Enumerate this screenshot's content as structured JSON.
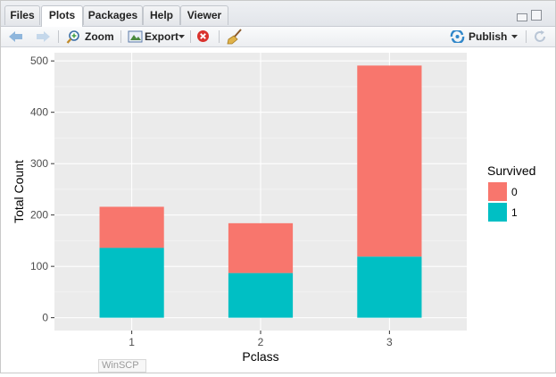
{
  "tabs": [
    {
      "label": "Files"
    },
    {
      "label": "Plots"
    },
    {
      "label": "Packages"
    },
    {
      "label": "Help"
    },
    {
      "label": "Viewer"
    }
  ],
  "toolbar": {
    "zoom_label": "Zoom",
    "export_label": "Export",
    "publish_label": "Publish"
  },
  "taskbar": {
    "winscp_label": "WinSCP"
  },
  "colors": {
    "survived_0": "#F8766D",
    "survived_1": "#00BFC4",
    "panel_bg": "#EBEBEB"
  },
  "chart_data": {
    "type": "bar",
    "stacked": true,
    "categories": [
      "1",
      "2",
      "3"
    ],
    "series": [
      {
        "name": "1",
        "values": [
          136,
          87,
          119
        ]
      },
      {
        "name": "0",
        "values": [
          80,
          97,
          372
        ]
      }
    ],
    "xlabel": "Pclass",
    "ylabel": "Total Count",
    "yticks": [
      0,
      100,
      200,
      300,
      400,
      500
    ],
    "ylim": [
      -25,
      516
    ],
    "legend": {
      "title": "Survived",
      "entries": [
        "0",
        "1"
      ],
      "placement": "right"
    }
  }
}
